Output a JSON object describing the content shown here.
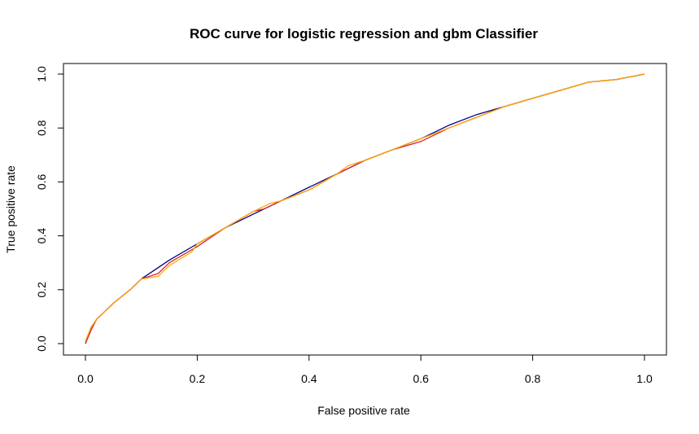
{
  "chart_data": {
    "type": "line",
    "title": "ROC curve for logistic regression and gbm Classifier",
    "xlabel": "False positive rate",
    "ylabel": "True positive rate",
    "xlim": [
      0,
      1
    ],
    "ylim": [
      0,
      1
    ],
    "x_ticks": [
      "0.0",
      "0.2",
      "0.4",
      "0.6",
      "0.8",
      "1.0"
    ],
    "y_ticks": [
      "0.0",
      "0.2",
      "0.4",
      "0.6",
      "0.8",
      "1.0"
    ],
    "grid": false,
    "legend": "none",
    "series": [
      {
        "color": "#00008b",
        "x": [
          0.0,
          0.01,
          0.02,
          0.03,
          0.05,
          0.08,
          0.1,
          0.15,
          0.2,
          0.25,
          0.3,
          0.35,
          0.4,
          0.45,
          0.5,
          0.55,
          0.6,
          0.65,
          0.7,
          0.75,
          0.8,
          0.85,
          0.9,
          0.95,
          1.0
        ],
        "y": [
          0.0,
          0.06,
          0.09,
          0.11,
          0.15,
          0.2,
          0.24,
          0.31,
          0.37,
          0.43,
          0.48,
          0.53,
          0.58,
          0.63,
          0.68,
          0.72,
          0.76,
          0.81,
          0.85,
          0.88,
          0.91,
          0.94,
          0.97,
          0.98,
          1.0
        ]
      },
      {
        "color": "#d62728",
        "x": [
          0.0,
          0.01,
          0.02,
          0.03,
          0.05,
          0.08,
          0.1,
          0.13,
          0.15,
          0.2,
          0.25,
          0.3,
          0.32,
          0.35,
          0.4,
          0.45,
          0.5,
          0.55,
          0.6,
          0.65,
          0.7,
          0.75,
          0.8,
          0.85,
          0.9,
          0.95,
          1.0
        ],
        "y": [
          0.0,
          0.05,
          0.09,
          0.11,
          0.15,
          0.2,
          0.24,
          0.26,
          0.3,
          0.36,
          0.43,
          0.49,
          0.5,
          0.53,
          0.57,
          0.63,
          0.68,
          0.72,
          0.75,
          0.8,
          0.84,
          0.88,
          0.91,
          0.94,
          0.97,
          0.98,
          1.0
        ]
      },
      {
        "color": "#ffa500",
        "x": [
          0.0,
          0.01,
          0.02,
          0.03,
          0.05,
          0.08,
          0.1,
          0.13,
          0.15,
          0.19,
          0.2,
          0.25,
          0.3,
          0.33,
          0.35,
          0.4,
          0.45,
          0.47,
          0.5,
          0.55,
          0.6,
          0.65,
          0.7,
          0.75,
          0.8,
          0.85,
          0.9,
          0.95,
          1.0
        ],
        "y": [
          0.01,
          0.06,
          0.09,
          0.11,
          0.15,
          0.2,
          0.24,
          0.25,
          0.29,
          0.34,
          0.37,
          0.43,
          0.49,
          0.52,
          0.53,
          0.57,
          0.63,
          0.66,
          0.68,
          0.72,
          0.76,
          0.8,
          0.84,
          0.88,
          0.91,
          0.94,
          0.97,
          0.98,
          1.0
        ]
      }
    ]
  }
}
